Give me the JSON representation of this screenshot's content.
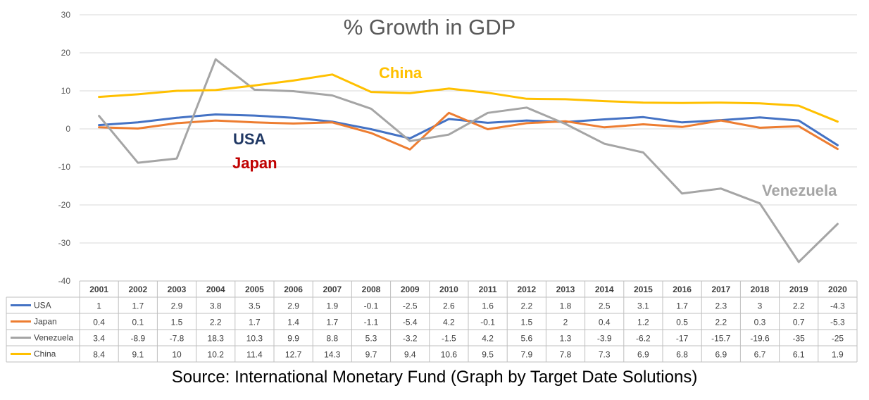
{
  "chart_data": {
    "type": "line",
    "title": "% Growth in GDP",
    "categories": [
      "2001",
      "2002",
      "2003",
      "2004",
      "2005",
      "2006",
      "2007",
      "2008",
      "2009",
      "2010",
      "2011",
      "2012",
      "2013",
      "2014",
      "2015",
      "2016",
      "2017",
      "2018",
      "2019",
      "2020"
    ],
    "ylim": [
      -40,
      30
    ],
    "yticks": [
      30,
      20,
      10,
      0,
      -10,
      -20,
      -30,
      -40
    ],
    "grid": true,
    "legend": "data table below chart",
    "series": [
      {
        "name": "USA",
        "color": "#4472C4",
        "values": [
          1,
          1.7,
          2.9,
          3.8,
          3.5,
          2.9,
          1.9,
          -0.1,
          -2.5,
          2.6,
          1.6,
          2.2,
          1.8,
          2.5,
          3.1,
          1.7,
          2.3,
          3,
          2.2,
          -4.3
        ]
      },
      {
        "name": "Japan",
        "color": "#ED7D31",
        "values": [
          0.4,
          0.1,
          1.5,
          2.2,
          1.7,
          1.4,
          1.7,
          -1.1,
          -5.4,
          4.2,
          -0.1,
          1.5,
          2,
          0.4,
          1.2,
          0.5,
          2.2,
          0.3,
          0.7,
          -5.3
        ]
      },
      {
        "name": "Venezuela",
        "color": "#A5A5A5",
        "values": [
          3.4,
          -8.9,
          -7.8,
          18.3,
          10.3,
          9.9,
          8.8,
          5.3,
          -3.2,
          -1.5,
          4.2,
          5.6,
          1.3,
          -3.9,
          -6.2,
          -17,
          -15.7,
          -19.6,
          -35,
          -25
        ]
      },
      {
        "name": "China",
        "color": "#FFC000",
        "values": [
          8.4,
          9.1,
          10,
          10.2,
          11.4,
          12.7,
          14.3,
          9.7,
          9.4,
          10.6,
          9.5,
          7.9,
          7.8,
          7.3,
          6.9,
          6.8,
          6.9,
          6.7,
          6.1,
          1.9
        ]
      }
    ],
    "annotations": [
      {
        "text": "China",
        "color": "#FFC000"
      },
      {
        "text": "USA",
        "color": "#203864"
      },
      {
        "text": "Japan",
        "color": "#C00000"
      },
      {
        "text": "Venezuela",
        "color": "#A5A5A5"
      }
    ]
  },
  "source": "Source: International Monetary Fund   (Graph by Target Date Solutions)"
}
